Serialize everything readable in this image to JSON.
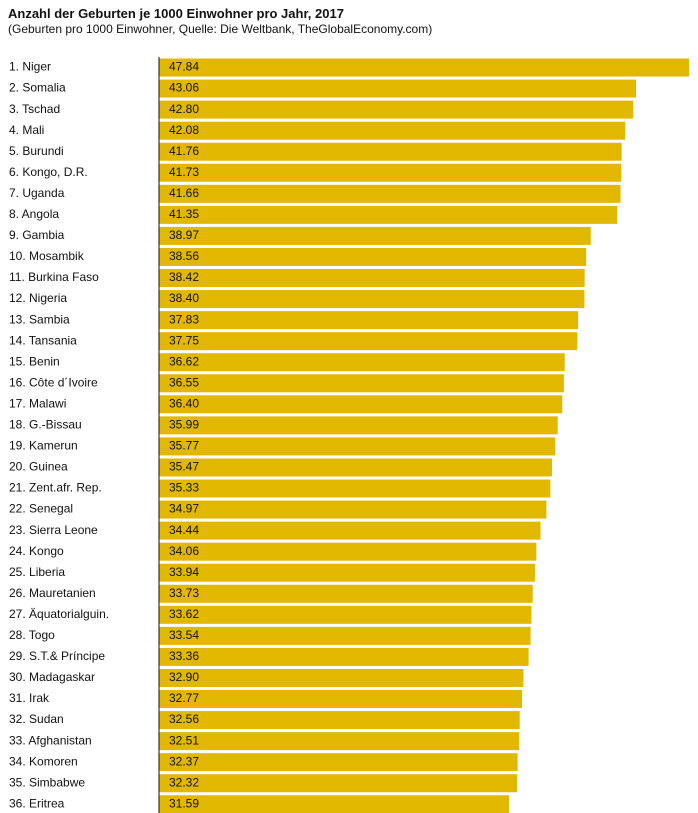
{
  "header": {
    "title": "Anzahl der Geburten je 1000 Einwohner pro Jahr, 2017",
    "subtitle": "(Geburten pro 1000 Einwohner, Quelle: Die Weltbank, TheGlobalEconomy.com)"
  },
  "colors": {
    "bar": "#E2B700",
    "axis": "#111111",
    "text": "#111111",
    "background": "#ffffff"
  },
  "chart_data": {
    "type": "bar",
    "orientation": "horizontal",
    "title": "Anzahl der Geburten je 1000 Einwohner pro Jahr, 2017",
    "subtitle": "(Geburten pro 1000 Einwohner, Quelle: Die Weltbank, TheGlobalEconomy.com)",
    "xlabel": "",
    "ylabel": "",
    "xlim": [
      0,
      47.84
    ],
    "grid": false,
    "legend": "none",
    "categories": [
      "1. Niger",
      "2. Somalia",
      "3. Tschad",
      "4. Mali",
      "5. Burundi",
      "6. Kongo, D.R.",
      "7. Uganda",
      "8. Angola",
      "9. Gambia",
      "10. Mosambik",
      "11. Burkina Faso",
      "12. Nigeria",
      "13. Sambia",
      "14. Tansania",
      "15. Benin",
      "16. Côte d´Ivoire",
      "17. Malawi",
      "18. G.-Bissau",
      "19. Kamerun",
      "20. Guinea",
      "21. Zent.afr. Rep.",
      "22. Senegal",
      "23. Sierra Leone",
      "24. Kongo",
      "25. Liberia",
      "26. Mauretanien",
      "27. Äquatorialguin.",
      "28. Togo",
      "29. S.T.& Príncipe",
      "30. Madagaskar",
      "31. Irak",
      "32. Sudan",
      "33. Afghanistan",
      "34. Komoren",
      "35. Simbabwe",
      "36. Eritrea"
    ],
    "value_labels": [
      "47.84",
      "43.06",
      "42.80",
      "42.08",
      "41.76",
      "41.73",
      "41.66",
      "41.35",
      "38.97",
      "38.56",
      "38.42",
      "38.40",
      "37.83",
      "37.75",
      "36.62",
      "36.55",
      "36.40",
      "35.99",
      "35.77",
      "35.47",
      "35.33",
      "34.97",
      "34.44",
      "34.06",
      "33.94",
      "33.73",
      "33.62",
      "33.54",
      "33.36",
      "32.90",
      "32.77",
      "32.56",
      "32.51",
      "32.37",
      "32.32",
      "31.59"
    ],
    "values": [
      47.84,
      43.06,
      42.8,
      42.08,
      41.76,
      41.73,
      41.66,
      41.35,
      38.97,
      38.56,
      38.42,
      38.4,
      37.83,
      37.75,
      36.62,
      36.55,
      36.4,
      35.99,
      35.77,
      35.47,
      35.33,
      34.97,
      34.44,
      34.06,
      33.94,
      33.73,
      33.62,
      33.54,
      33.36,
      32.9,
      32.77,
      32.56,
      32.51,
      32.37,
      32.32,
      31.59
    ]
  }
}
